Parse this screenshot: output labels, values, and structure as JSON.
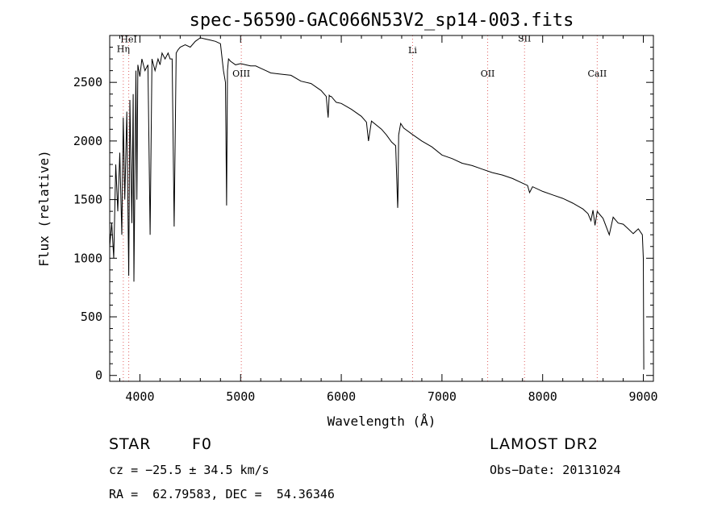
{
  "chart_data": {
    "type": "line",
    "title": "spec-56590-GAC066N53V2_sp14-003.fits",
    "xlabel": "Wavelength (Å)",
    "ylabel": "Flux (relative)",
    "xlim": [
      3700,
      9100
    ],
    "ylim": [
      -50,
      2900
    ],
    "xticks": [
      4000,
      5000,
      6000,
      7000,
      8000,
      9000
    ],
    "yticks": [
      0,
      500,
      1000,
      1500,
      2000,
      2500
    ],
    "grid": false,
    "line_color": "#000000",
    "marker_color": "#e06060",
    "series": [
      {
        "x": [
          3700,
          3720,
          3740,
          3760,
          3780,
          3800,
          3820,
          3835,
          3850,
          3870,
          3889,
          3900,
          3920,
          3933,
          3940,
          3960,
          3970,
          3980,
          4000,
          4020,
          4050,
          4080,
          4101,
          4120,
          4150,
          4180,
          4200,
          4220,
          4250,
          4280,
          4300,
          4320,
          4340,
          4360,
          4380,
          4400,
          4450,
          4500,
          4550,
          4600,
          4650,
          4700,
          4750,
          4800,
          4830,
          4850,
          4861,
          4870,
          4880,
          4900,
          4950,
          5000,
          5050,
          5100,
          5150,
          5200,
          5250,
          5300,
          5400,
          5500,
          5600,
          5700,
          5800,
          5850,
          5870,
          5880,
          5890,
          5900,
          5950,
          6000,
          6100,
          6200,
          6250,
          6270,
          6300,
          6400,
          6450,
          6500,
          6540,
          6560,
          6563,
          6570,
          6590,
          6620,
          6700,
          6800,
          6900,
          7000,
          7100,
          7200,
          7300,
          7400,
          7500,
          7600,
          7700,
          7800,
          7850,
          7870,
          7900,
          8000,
          8100,
          8200,
          8300,
          8400,
          8450,
          8480,
          8500,
          8520,
          8542,
          8560,
          8600,
          8662,
          8700,
          8750,
          8800,
          8850,
          8900,
          8950,
          8990,
          9000,
          9005
        ],
        "y": [
          1100,
          1300,
          1000,
          1800,
          1400,
          1900,
          1200,
          2200,
          1500,
          2250,
          850,
          2350,
          1300,
          2400,
          800,
          2600,
          1500,
          2650,
          2550,
          2700,
          2600,
          2650,
          1200,
          2700,
          2600,
          2700,
          2650,
          2750,
          2700,
          2750,
          2700,
          2700,
          1270,
          2750,
          2780,
          2800,
          2820,
          2800,
          2850,
          2880,
          2870,
          2860,
          2850,
          2830,
          2600,
          2500,
          1450,
          2600,
          2700,
          2680,
          2650,
          2660,
          2650,
          2640,
          2640,
          2620,
          2600,
          2580,
          2570,
          2560,
          2510,
          2490,
          2430,
          2380,
          2200,
          2390,
          2380,
          2380,
          2330,
          2320,
          2270,
          2210,
          2160,
          2000,
          2170,
          2100,
          2050,
          1990,
          1960,
          1430,
          1500,
          2050,
          2150,
          2110,
          2060,
          2000,
          1950,
          1880,
          1850,
          1810,
          1790,
          1760,
          1730,
          1710,
          1680,
          1640,
          1620,
          1560,
          1610,
          1570,
          1540,
          1510,
          1470,
          1420,
          1380,
          1320,
          1410,
          1280,
          1400,
          1380,
          1340,
          1200,
          1350,
          1300,
          1290,
          1250,
          1210,
          1250,
          1200,
          1000,
          50
        ]
      }
    ],
    "line_markers": [
      {
        "label": "HeI",
        "x": 3889,
        "label_y": 2840
      },
      {
        "label": "Hη",
        "x": 3835,
        "label_y": 2760
      },
      {
        "label": "OIII",
        "x": 5007,
        "label_y": 2550
      },
      {
        "label": "Li",
        "x": 6708,
        "label_y": 2750
      },
      {
        "label": "OII",
        "x": 7454,
        "label_y": 2550
      },
      {
        "label": "SII",
        "x": 7820,
        "label_y": 2850
      },
      {
        "label": "CaII",
        "x": 8542,
        "label_y": 2550
      }
    ]
  },
  "info": {
    "object_class": "STAR",
    "subclass": "F0",
    "survey": "LAMOST DR2",
    "cz": "cz = −25.5 ± 34.5 km/s",
    "obs_date": "Obs−Date: 20131024",
    "coords": "RA =  62.79583, DEC =  54.36346"
  }
}
